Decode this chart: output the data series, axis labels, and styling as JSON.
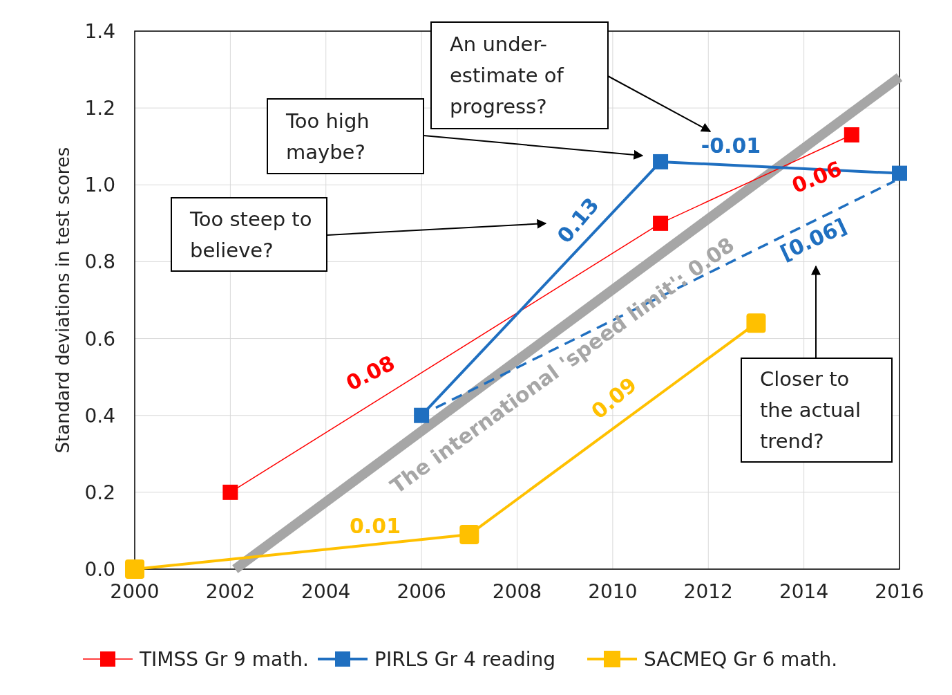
{
  "chart_data": {
    "type": "line",
    "ylabel": "Standard deviations in test scores",
    "xlim": [
      2000,
      2016
    ],
    "xticks": [
      2000,
      2002,
      2004,
      2006,
      2008,
      2010,
      2012,
      2014,
      2016
    ],
    "ylim": [
      0,
      1.4
    ],
    "yticks": [
      {
        "value": 0,
        "label": "0.0"
      },
      {
        "value": 0.2,
        "label": "0.2"
      },
      {
        "value": 0.4,
        "label": "0.4"
      },
      {
        "value": 0.6,
        "label": "0.6"
      },
      {
        "value": 0.8,
        "label": "0.8"
      },
      {
        "value": 1,
        "label": "1.0"
      },
      {
        "value": 1.2,
        "label": "1.2"
      },
      {
        "value": 1.4,
        "label": "1.4"
      }
    ],
    "grid": true,
    "legend": "bottom",
    "marker": "square",
    "series": [
      {
        "color": "#a6a6a6",
        "x": [
          2002.1,
          2016
        ],
        "values": [
          0,
          1.28
        ],
        "marker": "none"
      },
      {
        "color": "#1f6fc0",
        "x": [
          2006.3,
          2015.9
        ],
        "values": [
          0.42,
          1.01
        ],
        "marker": "none",
        "line_style": "dashed"
      },
      {
        "name": "TIMSS Gr 9 math.",
        "color": "#ff0000",
        "x": [
          2002,
          2011,
          2015
        ],
        "values": [
          0.2,
          0.9,
          1.13
        ]
      },
      {
        "name": "PIRLS Gr 4 reading",
        "color": "#1f6fc0",
        "x": [
          2006,
          2011,
          2016
        ],
        "values": [
          0.4,
          1.06,
          1.03
        ]
      },
      {
        "name": "SACMEQ Gr 6 math.",
        "color": "#ffc000",
        "x": [
          2000,
          2007,
          2013
        ],
        "values": [
          0,
          0.09,
          0.64
        ]
      }
    ],
    "annotations": [
      "Too steep to believe?",
      "Too high maybe?",
      "An under-estimate of progress?",
      "Closer to the actual trend?",
      "0.08",
      "0.13",
      "-0.01",
      "0.06",
      "[0.06]",
      "0.09",
      "0.01",
      "The international 'speed limit': 0.08"
    ]
  }
}
